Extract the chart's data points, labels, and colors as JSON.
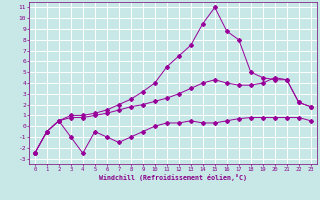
{
  "xlabel": "Windchill (Refroidissement éolien,°C)",
  "bg_color": "#c8e8e8",
  "grid_color": "#ffffff",
  "line_color": "#990099",
  "x_ticks": [
    0,
    1,
    2,
    3,
    4,
    5,
    6,
    7,
    8,
    9,
    10,
    11,
    12,
    13,
    14,
    15,
    16,
    17,
    18,
    19,
    20,
    21,
    22,
    23
  ],
  "y_ticks": [
    -3,
    -2,
    -1,
    0,
    1,
    2,
    3,
    4,
    5,
    6,
    7,
    8,
    9,
    10,
    11
  ],
  "ylim": [
    -3.5,
    11.5
  ],
  "xlim": [
    -0.5,
    23.5
  ],
  "series1_y": [
    -2.5,
    -0.5,
    0.5,
    -1.0,
    -2.5,
    -0.5,
    -1.0,
    -1.5,
    -1.0,
    -0.5,
    0.0,
    0.3,
    0.3,
    0.5,
    0.3,
    0.3,
    0.5,
    0.7,
    0.8,
    0.8,
    0.8,
    0.8,
    0.8,
    0.5
  ],
  "series2_y": [
    -2.5,
    -0.5,
    0.5,
    0.8,
    0.8,
    1.0,
    1.2,
    1.5,
    1.8,
    2.0,
    2.3,
    2.6,
    3.0,
    3.5,
    4.0,
    4.3,
    4.0,
    3.8,
    3.8,
    4.0,
    4.5,
    4.3,
    2.2,
    1.8
  ],
  "series3_y": [
    -2.5,
    -0.5,
    0.5,
    1.0,
    1.0,
    1.2,
    1.5,
    2.0,
    2.5,
    3.2,
    4.0,
    5.5,
    6.5,
    7.5,
    9.5,
    11.0,
    8.8,
    8.0,
    5.0,
    4.5,
    4.3,
    4.3,
    2.2,
    1.8
  ]
}
